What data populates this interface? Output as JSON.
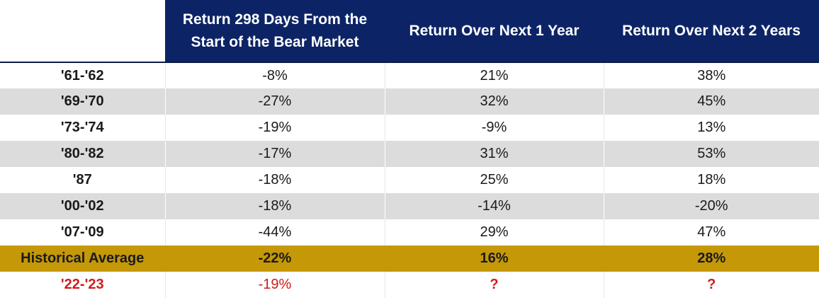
{
  "headers": {
    "period": "",
    "col1": "Return 298 Days From the Start of the Bear Market",
    "col2": "Return Over Next 1 Year",
    "col3": "Return Over Next 2 Years"
  },
  "rows": [
    {
      "period": "'61-'62",
      "r298": "-8%",
      "next1": "21%",
      "next2": "38%"
    },
    {
      "period": "'69-'70",
      "r298": "-27%",
      "next1": "32%",
      "next2": "45%"
    },
    {
      "period": "'73-'74",
      "r298": "-19%",
      "next1": "-9%",
      "next2": "13%"
    },
    {
      "period": "'80-'82",
      "r298": "-17%",
      "next1": "31%",
      "next2": "53%"
    },
    {
      "period": "'87",
      "r298": "-18%",
      "next1": "25%",
      "next2": "18%"
    },
    {
      "period": "'00-'02",
      "r298": "-18%",
      "next1": "-14%",
      "next2": "-20%"
    },
    {
      "period": "'07-'09",
      "r298": "-44%",
      "next1": "29%",
      "next2": "47%"
    }
  ],
  "average": {
    "period": "Historical Average",
    "r298": "-22%",
    "next1": "16%",
    "next2": "28%"
  },
  "current": {
    "period": "'22-'23",
    "r298": "-19%",
    "next1": "?",
    "next2": "?"
  },
  "colors": {
    "header_bg": "#0c2466",
    "average_bg": "#c59808",
    "shaded_row_bg": "#dcdcdc",
    "current_text": "#d11a1a"
  }
}
